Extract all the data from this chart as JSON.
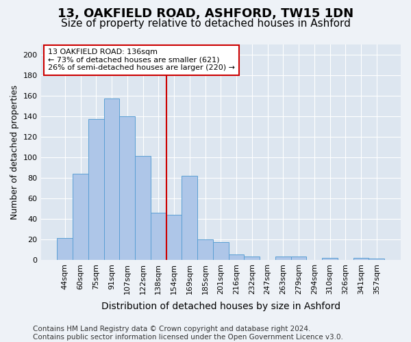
{
  "title": "13, OAKFIELD ROAD, ASHFORD, TW15 1DN",
  "subtitle": "Size of property relative to detached houses in Ashford",
  "xlabel": "Distribution of detached houses by size in Ashford",
  "ylabel": "Number of detached properties",
  "categories": [
    "44sqm",
    "60sqm",
    "75sqm",
    "91sqm",
    "107sqm",
    "122sqm",
    "138sqm",
    "154sqm",
    "169sqm",
    "185sqm",
    "201sqm",
    "216sqm",
    "232sqm",
    "247sqm",
    "263sqm",
    "279sqm",
    "294sqm",
    "310sqm",
    "326sqm",
    "341sqm",
    "357sqm"
  ],
  "values": [
    21,
    84,
    137,
    157,
    140,
    101,
    46,
    44,
    82,
    20,
    17,
    5,
    3,
    0,
    3,
    3,
    0,
    2,
    0,
    2,
    1
  ],
  "bar_color": "#aec6e8",
  "bar_edge_color": "#5a9fd4",
  "vline_color": "#cc0000",
  "vline_pos": 6.5,
  "annotation_text": "13 OAKFIELD ROAD: 136sqm\n← 73% of detached houses are smaller (621)\n26% of semi-detached houses are larger (220) →",
  "annotation_box_color": "#ffffff",
  "annotation_box_edge": "#cc0000",
  "footer": "Contains HM Land Registry data © Crown copyright and database right 2024.\nContains public sector information licensed under the Open Government Licence v3.0.",
  "ylim": [
    0,
    210
  ],
  "fig_bg_color": "#eef2f7",
  "plot_bg_color": "#dde6f0",
  "yticks": [
    0,
    20,
    40,
    60,
    80,
    100,
    120,
    140,
    160,
    180,
    200
  ],
  "title_fontsize": 13,
  "subtitle_fontsize": 11,
  "xlabel_fontsize": 10,
  "ylabel_fontsize": 9,
  "tick_fontsize": 8,
  "annotation_fontsize": 8,
  "footer_fontsize": 7.5
}
